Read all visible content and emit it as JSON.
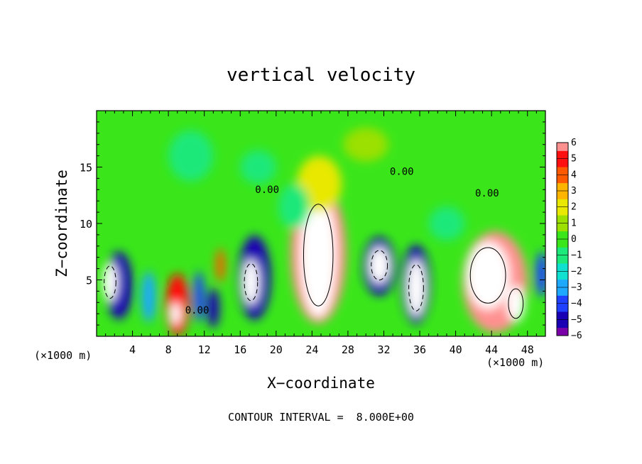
{
  "chart_data": {
    "type": "heatmap",
    "title": "vertical velocity",
    "xlabel": "X−coordinate",
    "ylabel": "Z−coordinate",
    "x_unit_left": "(×1000 m)",
    "x_unit_right": "(×1000 m)",
    "xlim": [
      0,
      50
    ],
    "ylim": [
      0,
      20
    ],
    "x_ticks": [
      4,
      8,
      12,
      16,
      20,
      24,
      28,
      32,
      36,
      40,
      44,
      48
    ],
    "y_ticks": [
      5,
      10,
      15
    ],
    "colorbar": {
      "ticks": [
        6,
        5,
        4,
        3,
        2,
        1,
        0,
        -1,
        -2,
        -3,
        -4,
        -5,
        -6
      ],
      "tick_labels": [
        "6",
        "5",
        "4",
        "3",
        "2",
        "1",
        "0",
        "−1",
        "−2",
        "−3",
        "−4",
        "−5",
        "−6"
      ],
      "range": [
        -6,
        6
      ]
    },
    "contour_labels": [
      {
        "text": "0.00",
        "x": 19.0,
        "z": 12.7
      },
      {
        "text": "0.00",
        "x": 34.0,
        "z": 14.3
      },
      {
        "text": "0.00",
        "x": 43.5,
        "z": 12.4
      },
      {
        "text": "0.00",
        "x": 11.2,
        "z": 2.0
      }
    ],
    "footer": "CONTOUR INTERVAL =  8.000E+00",
    "cells": [
      {
        "x": 2.5,
        "z": 4.5,
        "w": 3.0,
        "h": 6.0,
        "v": -5.5
      },
      {
        "x": 1.5,
        "z": 4.8,
        "w": 1.6,
        "h": 3.5,
        "v": -7.0
      },
      {
        "x": 5.8,
        "z": 3.5,
        "w": 1.6,
        "h": 4.5,
        "v": -3.2
      },
      {
        "x": 9.0,
        "z": 2.8,
        "w": 2.6,
        "h": 5.5,
        "v": 4.5
      },
      {
        "x": 8.8,
        "z": 2.0,
        "w": 1.2,
        "h": 2.0,
        "v": 6.5
      },
      {
        "x": 11.4,
        "z": 3.5,
        "w": 1.2,
        "h": 4.5,
        "v": -3.6
      },
      {
        "x": 13.0,
        "z": 2.5,
        "w": 1.4,
        "h": 3.5,
        "v": -5.2
      },
      {
        "x": 13.8,
        "z": 6.3,
        "w": 1.0,
        "h": 3.0,
        "v": 4.0
      },
      {
        "x": 17.6,
        "z": 5.2,
        "w": 3.6,
        "h": 7.5,
        "v": -5.0
      },
      {
        "x": 17.2,
        "z": 4.8,
        "w": 1.8,
        "h": 4.0,
        "v": -7.0
      },
      {
        "x": 24.7,
        "z": 7.4,
        "w": 6.2,
        "h": 12.5,
        "v": 5.5
      },
      {
        "x": 24.7,
        "z": 7.2,
        "w": 4.0,
        "h": 11.0,
        "v": 7.0
      },
      {
        "x": 24.8,
        "z": 13.5,
        "w": 5.0,
        "h": 5.0,
        "v": 2.0
      },
      {
        "x": 31.5,
        "z": 6.2,
        "w": 3.6,
        "h": 5.2,
        "v": -5.5
      },
      {
        "x": 31.5,
        "z": 6.3,
        "w": 2.2,
        "h": 3.2,
        "v": -7.0
      },
      {
        "x": 35.6,
        "z": 4.6,
        "w": 3.2,
        "h": 7.0,
        "v": -5.5
      },
      {
        "x": 35.6,
        "z": 4.3,
        "w": 2.0,
        "h": 5.0,
        "v": -7.0
      },
      {
        "x": 44.4,
        "z": 4.8,
        "w": 7.2,
        "h": 9.0,
        "v": 5.5
      },
      {
        "x": 43.6,
        "z": 5.4,
        "w": 4.8,
        "h": 6.0,
        "v": 7.0
      },
      {
        "x": 46.7,
        "z": 2.9,
        "w": 2.0,
        "h": 3.2,
        "v": 7.0
      },
      {
        "x": 49.6,
        "z": 5.5,
        "w": 1.4,
        "h": 4.0,
        "v": -4.5
      },
      {
        "x": 22.0,
        "z": 11.5,
        "w": 3.5,
        "h": 4.0,
        "v": -0.6
      },
      {
        "x": 10.5,
        "z": 16.0,
        "w": 5.0,
        "h": 4.5,
        "v": -1.3
      },
      {
        "x": 18.0,
        "z": 15.0,
        "w": 4.0,
        "h": 3.0,
        "v": -1.0
      },
      {
        "x": 30.0,
        "z": 17.0,
        "w": 5.0,
        "h": 3.0,
        "v": 0.6
      },
      {
        "x": 39.0,
        "z": 10.0,
        "w": 4.0,
        "h": 3.0,
        "v": -0.6
      }
    ]
  }
}
